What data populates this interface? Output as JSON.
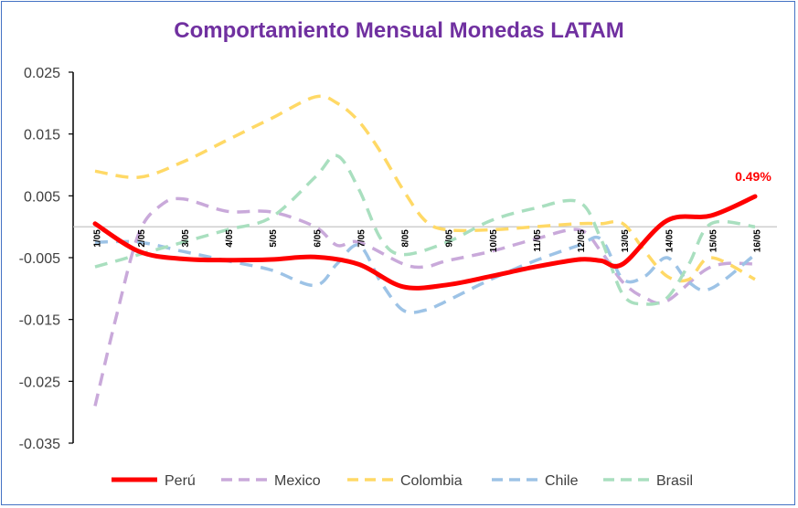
{
  "chart_data": {
    "type": "line",
    "title": "Comportamiento Mensual Monedas LATAM",
    "xlabel": "",
    "ylabel": "",
    "ylim": [
      -0.035,
      0.025
    ],
    "yticks": [
      0.025,
      0.015,
      0.005,
      -0.005,
      -0.015,
      -0.025,
      -0.035
    ],
    "ytick_labels": [
      "0.025",
      "0.015",
      "0.005",
      "-0.005",
      "-0.015",
      "-0.025",
      "-0.035"
    ],
    "categories": [
      "1/05",
      "2/05",
      "3/05",
      "4/05",
      "5/05",
      "6/05",
      "7/05",
      "8/05",
      "9/05",
      "10/05",
      "11/05",
      "12/05",
      "13/05",
      "14/05",
      "15/05",
      "16/05"
    ],
    "legend_position": "bottom",
    "grid": false,
    "series": [
      {
        "name": "Perú",
        "color": "#ff0000",
        "dash": "solid",
        "width": 5,
        "x": [
          0,
          1,
          2,
          3,
          4,
          5,
          6,
          7,
          8,
          9,
          10,
          11,
          11.5,
          12,
          13,
          14,
          15
        ],
        "values": [
          0.0005,
          -0.004,
          -0.0052,
          -0.0054,
          -0.0053,
          -0.0049,
          -0.0061,
          -0.0097,
          -0.0094,
          -0.008,
          -0.0065,
          -0.0053,
          -0.0055,
          -0.006,
          0.001,
          0.0018,
          0.0049
        ]
      },
      {
        "name": "Mexico",
        "color": "#c9a9da",
        "dash": "dashed",
        "width": 3.5,
        "x": [
          0,
          0.5,
          1,
          1.5,
          2,
          3,
          4,
          5,
          5.5,
          6,
          7,
          7.5,
          8,
          9,
          10,
          11,
          11.5,
          12,
          12.5,
          13,
          14,
          15
        ],
        "values": [
          -0.029,
          -0.014,
          -0.001,
          0.0035,
          0.0045,
          0.0025,
          0.0024,
          0.0,
          -0.003,
          -0.0025,
          -0.006,
          -0.0065,
          -0.0055,
          -0.004,
          -0.002,
          -0.0005,
          -0.004,
          -0.009,
          -0.0115,
          -0.012,
          -0.0065,
          -0.006
        ]
      },
      {
        "name": "Colombia",
        "color": "#ffd966",
        "dash": "dashed",
        "width": 3.5,
        "x": [
          0,
          1,
          2,
          3,
          4,
          5,
          5.5,
          6,
          6.5,
          7,
          7.5,
          8,
          9,
          10,
          11,
          11.5,
          12,
          12.5,
          13,
          13.5,
          14,
          15
        ],
        "values": [
          0.009,
          0.008,
          0.0105,
          0.014,
          0.0175,
          0.021,
          0.02,
          0.017,
          0.012,
          0.006,
          0.001,
          -0.0005,
          -0.0005,
          0.0,
          0.0005,
          0.0005,
          0.0005,
          -0.004,
          -0.008,
          -0.0085,
          -0.005,
          -0.0085
        ]
      },
      {
        "name": "Chile",
        "color": "#9dc3e6",
        "dash": "dashed",
        "width": 3.5,
        "x": [
          0,
          1,
          2,
          3,
          4,
          5,
          5.5,
          6,
          6.5,
          7,
          7.5,
          8,
          9,
          10,
          11,
          11.5,
          12,
          12.5,
          13,
          13.5,
          14,
          15
        ],
        "values": [
          -0.0025,
          -0.0025,
          -0.004,
          -0.0055,
          -0.007,
          -0.0095,
          -0.006,
          -0.003,
          -0.009,
          -0.0135,
          -0.0135,
          -0.012,
          -0.0085,
          -0.0055,
          -0.003,
          -0.002,
          -0.0085,
          -0.008,
          -0.005,
          -0.009,
          -0.01,
          -0.0045
        ]
      },
      {
        "name": "Brasil",
        "color": "#a9dfbf",
        "dash": "dashed",
        "width": 3.5,
        "x": [
          0,
          1,
          2,
          3,
          4,
          5,
          5.5,
          6,
          6.5,
          7,
          8,
          9,
          10,
          11,
          11.5,
          12,
          12.5,
          13,
          13.5,
          14,
          15
        ],
        "values": [
          -0.0065,
          -0.0045,
          -0.0025,
          -0.0005,
          0.0015,
          0.008,
          0.0115,
          0.006,
          -0.002,
          -0.0045,
          -0.0025,
          0.001,
          0.003,
          0.004,
          -0.002,
          -0.011,
          -0.0125,
          -0.0115,
          -0.006,
          0.0005,
          0.0
        ]
      }
    ],
    "annotations": [
      {
        "text": "0.49%",
        "series": "Perú",
        "x": 15,
        "y": 0.0049,
        "color": "#ff0000"
      }
    ]
  }
}
